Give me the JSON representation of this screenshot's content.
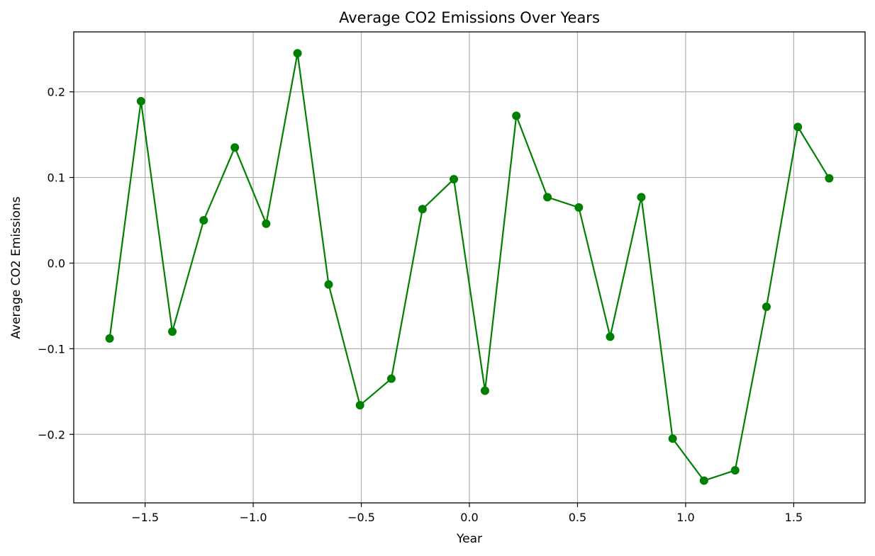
{
  "chart_data": {
    "type": "line",
    "title": "Average CO2 Emissions Over Years",
    "xlabel": "Year",
    "ylabel": "Average CO2 Emissions",
    "xlim": [
      -1.83,
      1.83
    ],
    "ylim": [
      -0.28,
      0.27
    ],
    "grid": true,
    "xticks": [
      {
        "value": -1.5,
        "label": "−1.5"
      },
      {
        "value": -1.0,
        "label": "−1.0"
      },
      {
        "value": -0.5,
        "label": "−0.5"
      },
      {
        "value": 0.0,
        "label": "0.0"
      },
      {
        "value": 0.5,
        "label": "0.5"
      },
      {
        "value": 1.0,
        "label": "1.0"
      },
      {
        "value": 1.5,
        "label": "1.5"
      }
    ],
    "yticks": [
      {
        "value": -0.2,
        "label": "−0.2"
      },
      {
        "value": -0.1,
        "label": "−0.1"
      },
      {
        "value": 0.0,
        "label": "0.0"
      },
      {
        "value": 0.1,
        "label": "0.1"
      },
      {
        "value": 0.2,
        "label": "0.2"
      }
    ],
    "series": [
      {
        "color": "#008000",
        "marker": "circle",
        "x": [
          -1.664,
          -1.519,
          -1.374,
          -1.229,
          -1.085,
          -0.94,
          -0.795,
          -0.651,
          -0.506,
          -0.361,
          -0.217,
          -0.072,
          0.072,
          0.217,
          0.361,
          0.506,
          0.651,
          0.795,
          0.94,
          1.085,
          1.229,
          1.374,
          1.519,
          1.664
        ],
        "y": [
          -0.088,
          0.189,
          -0.08,
          0.05,
          0.135,
          0.046,
          0.245,
          -0.025,
          -0.166,
          -0.135,
          0.063,
          0.098,
          -0.149,
          0.172,
          0.077,
          0.065,
          -0.086,
          0.077,
          -0.205,
          -0.254,
          -0.242,
          -0.051,
          0.159,
          0.099
        ]
      }
    ]
  }
}
